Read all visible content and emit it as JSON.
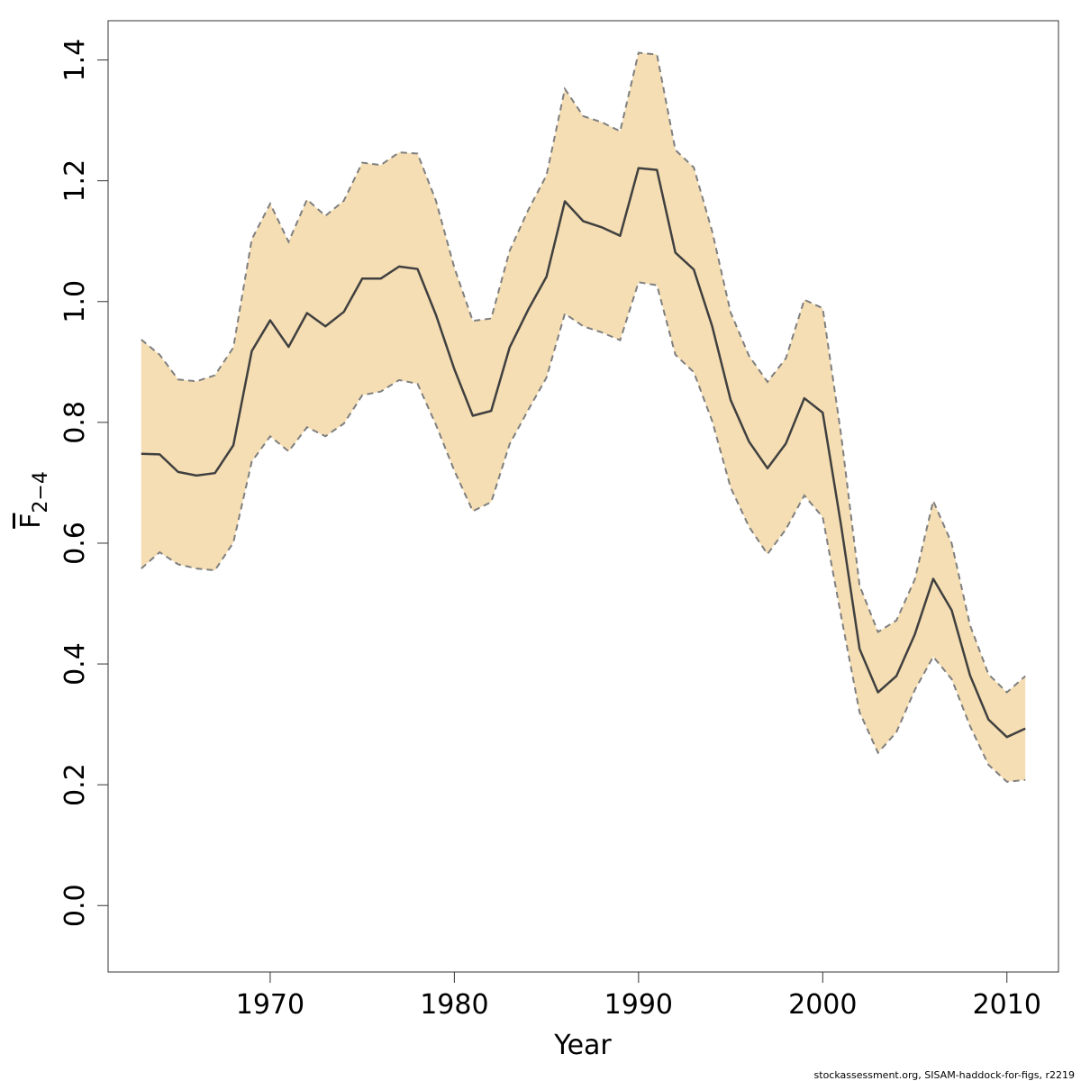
{
  "chart_data": {
    "type": "line",
    "title": "",
    "xlabel": "Year",
    "ylabel": "F",
    "ylabel_subscript": "2−4",
    "xlim": [
      1961.2,
      2012.8
    ],
    "ylim": [
      -0.11,
      1.465
    ],
    "x_ticks": [
      1970,
      1980,
      1990,
      2000,
      2010
    ],
    "y_ticks": [
      0.0,
      0.2,
      0.4,
      0.6,
      0.8,
      1.0,
      1.2,
      1.4
    ],
    "x_tick_labels": [
      "1970",
      "1980",
      "1990",
      "2000",
      "2010"
    ],
    "y_tick_labels": [
      "0.0",
      "0.2",
      "0.4",
      "0.6",
      "0.8",
      "1.0",
      "1.2",
      "1.4"
    ],
    "grid": false,
    "band_color": "#f5deb3",
    "line_color": "#404040",
    "bound_color": "#7f7f7f",
    "x": [
      1963,
      1964,
      1965,
      1966,
      1967,
      1968,
      1969,
      1970,
      1971,
      1972,
      1973,
      1974,
      1975,
      1976,
      1977,
      1978,
      1979,
      1980,
      1981,
      1982,
      1983,
      1984,
      1985,
      1986,
      1987,
      1988,
      1989,
      1990,
      1991,
      1992,
      1993,
      1994,
      1995,
      1996,
      1997,
      1998,
      1999,
      2000,
      2001,
      2002,
      2003,
      2004,
      2005,
      2006,
      2007,
      2008,
      2009,
      2010,
      2011
    ],
    "series": [
      {
        "name": "estimate",
        "values": [
          0.748,
          0.747,
          0.718,
          0.712,
          0.716,
          0.762,
          0.918,
          0.969,
          0.925,
          0.981,
          0.959,
          0.983,
          1.038,
          1.038,
          1.058,
          1.054,
          0.978,
          0.888,
          0.811,
          0.819,
          0.924,
          0.986,
          1.041,
          1.166,
          1.133,
          1.123,
          1.109,
          1.221,
          1.218,
          1.081,
          1.053,
          0.959,
          0.837,
          0.768,
          0.724,
          0.765,
          0.84,
          0.816,
          0.629,
          0.425,
          0.353,
          0.38,
          0.449,
          0.541,
          0.489,
          0.381,
          0.308,
          0.279,
          0.293
        ]
      },
      {
        "name": "upper",
        "values": [
          0.937,
          0.912,
          0.871,
          0.868,
          0.878,
          0.924,
          1.103,
          1.162,
          1.099,
          1.169,
          1.142,
          1.167,
          1.23,
          1.226,
          1.247,
          1.245,
          1.167,
          1.056,
          0.968,
          0.972,
          1.084,
          1.151,
          1.209,
          1.352,
          1.307,
          1.297,
          1.282,
          1.412,
          1.409,
          1.251,
          1.222,
          1.116,
          0.982,
          0.91,
          0.867,
          0.906,
          1.003,
          0.989,
          0.779,
          0.53,
          0.453,
          0.472,
          0.54,
          0.67,
          0.6,
          0.464,
          0.383,
          0.353,
          0.38
        ]
      },
      {
        "name": "lower",
        "values": [
          0.558,
          0.585,
          0.565,
          0.558,
          0.555,
          0.601,
          0.735,
          0.777,
          0.752,
          0.792,
          0.777,
          0.798,
          0.845,
          0.851,
          0.87,
          0.864,
          0.796,
          0.72,
          0.653,
          0.668,
          0.764,
          0.82,
          0.874,
          0.98,
          0.959,
          0.949,
          0.936,
          1.032,
          1.027,
          0.912,
          0.883,
          0.802,
          0.692,
          0.627,
          0.582,
          0.623,
          0.679,
          0.643,
          0.479,
          0.32,
          0.253,
          0.287,
          0.357,
          0.412,
          0.375,
          0.297,
          0.233,
          0.205,
          0.208
        ]
      }
    ]
  },
  "footer": {
    "text": "stockassessment.org, SISAM-haddock-for-figs, r2219"
  }
}
